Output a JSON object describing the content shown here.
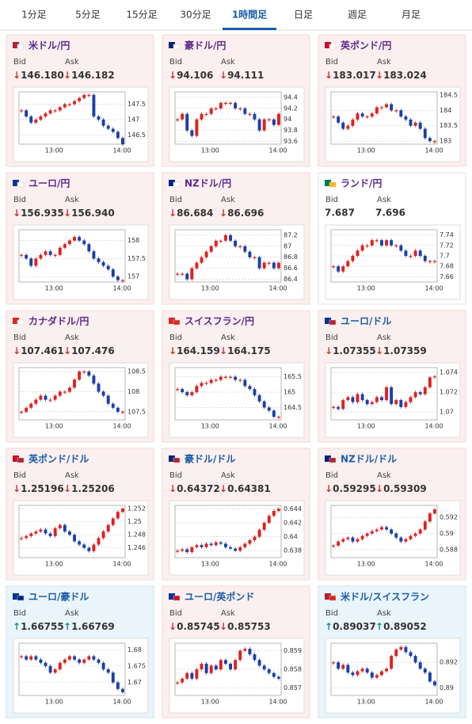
{
  "tabs": {
    "items": [
      "1分足",
      "5分足",
      "15分足",
      "30分足",
      "1時間足",
      "日足",
      "週足",
      "月足"
    ],
    "active": 4
  },
  "labels": {
    "bid": "Bid",
    "ask": "Ask"
  },
  "time_labels": [
    "13:00",
    "14:00"
  ],
  "pairs": [
    {
      "name": "米ドル/円",
      "name_color": "#5b2a8c",
      "trend": "down",
      "flags": [
        "#b22234",
        "#ffffff"
      ],
      "bid": "↓146.180",
      "ask": "↓146.182",
      "chart_data": {
        "type": "candlestick",
        "ylim": [
          146.2,
          147.9
        ],
        "yticks": [
          146.5,
          147,
          147.5
        ],
        "values": [
          147.3,
          147.1,
          146.9,
          147.0,
          147.1,
          147.2,
          147.3,
          147.3,
          147.4,
          147.5,
          147.5,
          147.6,
          147.7,
          147.8,
          147.8,
          147.1,
          147.0,
          146.8,
          146.7,
          146.6,
          146.4,
          146.2
        ]
      }
    },
    {
      "name": "豪ドル/円",
      "name_color": "#5b2a8c",
      "trend": "down",
      "flags": [
        "#00247d",
        "#ffffff"
      ],
      "bid": "↓94.106",
      "ask": "↓94.111",
      "chart_data": {
        "type": "candlestick",
        "ylim": [
          93.55,
          94.5
        ],
        "yticks": [
          93.6,
          93.8,
          94,
          94.2,
          94.4
        ],
        "values": [
          94.0,
          94.1,
          93.8,
          93.7,
          94.0,
          94.1,
          94.1,
          94.2,
          94.2,
          94.3,
          94.3,
          94.3,
          94.2,
          94.2,
          94.1,
          94.1,
          94.0,
          93.8,
          94.0,
          94.0,
          93.9,
          94.1
        ]
      }
    },
    {
      "name": "英ポンド/円",
      "name_color": "#5b2a8c",
      "trend": "down",
      "flags": [
        "#c8102e",
        "#ffffff"
      ],
      "bid": "↓183.017",
      "ask": "↓183.024",
      "chart_data": {
        "type": "candlestick",
        "ylim": [
          182.9,
          184.6
        ],
        "yticks": [
          183,
          183.5,
          184,
          184.5
        ],
        "values": [
          183.8,
          183.6,
          183.4,
          183.5,
          183.7,
          183.9,
          183.8,
          183.8,
          183.9,
          184.1,
          184.1,
          184.2,
          184.0,
          184.0,
          183.8,
          183.7,
          183.5,
          183.6,
          183.4,
          183.1,
          183.0,
          183.0
        ]
      }
    },
    {
      "name": "ユーロ/円",
      "name_color": "#5b2a8c",
      "trend": "down",
      "flags": [
        "#003399",
        "#ffffff"
      ],
      "bid": "↓156.935",
      "ask": "↓156.940",
      "chart_data": {
        "type": "candlestick",
        "ylim": [
          156.85,
          158.3
        ],
        "yticks": [
          157,
          157.5,
          158
        ],
        "values": [
          157.6,
          157.5,
          157.3,
          157.5,
          157.6,
          157.7,
          157.6,
          157.6,
          157.8,
          157.9,
          158.0,
          158.1,
          158.0,
          157.9,
          157.7,
          157.5,
          157.4,
          157.3,
          157.2,
          157.0,
          156.9,
          156.9
        ]
      }
    },
    {
      "name": "NZドル/円",
      "name_color": "#5b2a8c",
      "trend": "down",
      "flags": [
        "#00247d",
        "#ffffff"
      ],
      "bid": "↓86.684",
      "ask": "↓86.696",
      "chart_data": {
        "type": "candlestick",
        "ylim": [
          86.35,
          87.3
        ],
        "yticks": [
          86.4,
          86.6,
          86.8,
          87,
          87.2
        ],
        "values": [
          86.5,
          86.5,
          86.4,
          86.6,
          86.7,
          86.8,
          86.9,
          87.0,
          87.1,
          87.1,
          87.2,
          87.1,
          87.0,
          87.0,
          86.9,
          86.8,
          86.8,
          86.6,
          86.7,
          86.7,
          86.6,
          86.7
        ]
      }
    },
    {
      "name": "ランド/円",
      "name_color": "#5b2a8c",
      "trend": "none",
      "flags": [
        "#007a4d",
        "#ffb612"
      ],
      "bid": "7.687",
      "ask": "7.696",
      "chart_data": {
        "type": "candlestick",
        "ylim": [
          7.65,
          7.75
        ],
        "yticks": [
          7.66,
          7.68,
          7.7,
          7.72,
          7.74
        ],
        "values": [
          7.68,
          7.67,
          7.68,
          7.69,
          7.7,
          7.71,
          7.72,
          7.72,
          7.73,
          7.73,
          7.72,
          7.73,
          7.72,
          7.72,
          7.71,
          7.7,
          7.7,
          7.71,
          7.7,
          7.69,
          7.69,
          7.69
        ]
      }
    },
    {
      "name": "カナダドル/円",
      "name_color": "#5b2a8c",
      "trend": "down",
      "flags": [
        "#d52b1e",
        "#ffffff"
      ],
      "bid": "↓107.461",
      "ask": "↓107.476",
      "chart_data": {
        "type": "candlestick",
        "ylim": [
          107.3,
          108.6
        ],
        "yticks": [
          107.5,
          108,
          108.5
        ],
        "values": [
          107.5,
          107.6,
          107.7,
          107.8,
          107.9,
          107.8,
          107.8,
          107.9,
          108.0,
          108.0,
          108.1,
          108.3,
          108.5,
          108.5,
          108.4,
          108.2,
          108.0,
          107.9,
          107.7,
          107.6,
          107.5,
          107.5
        ]
      }
    },
    {
      "name": "スイスフラン/円",
      "name_color": "#5b2a8c",
      "trend": "down",
      "flags": [
        "#d52b1e",
        "#d52b1e"
      ],
      "bid": "↓164.159",
      "ask": "↓164.175",
      "chart_data": {
        "type": "candlestick",
        "ylim": [
          164.1,
          165.8
        ],
        "yticks": [
          164.5,
          165,
          165.5
        ],
        "values": [
          165.1,
          165.0,
          164.9,
          165.0,
          165.2,
          165.3,
          165.3,
          165.4,
          165.4,
          165.5,
          165.5,
          165.5,
          165.4,
          165.4,
          165.2,
          165.1,
          164.9,
          164.7,
          164.5,
          164.4,
          164.2,
          164.2
        ]
      }
    },
    {
      "name": "ユーロ/ドル",
      "name_color": "#1a5ea8",
      "trend": "down",
      "flags": [
        "#003399",
        "#b22234"
      ],
      "bid": "↓1.07355",
      "ask": "↓1.07359",
      "chart_data": {
        "type": "candlestick",
        "ylim": [
          1.0692,
          1.0745
        ],
        "yticks": [
          1.07,
          1.072,
          1.074
        ],
        "values": [
          1.0705,
          1.0703,
          1.0712,
          1.0715,
          1.071,
          1.0718,
          1.0712,
          1.0708,
          1.071,
          1.0715,
          1.0712,
          1.0725,
          1.0708,
          1.0712,
          1.0705,
          1.071,
          1.0715,
          1.072,
          1.0718,
          1.0725,
          1.0735,
          1.0736
        ]
      }
    },
    {
      "name": "英ポンド/ドル",
      "name_color": "#1a5ea8",
      "trend": "down",
      "flags": [
        "#c8102e",
        "#b22234"
      ],
      "bid": "↓1.25196",
      "ask": "↓1.25206",
      "chart_data": {
        "type": "candlestick",
        "ylim": [
          1.2445,
          1.2525
        ],
        "yticks": [
          1.246,
          1.248,
          1.25,
          1.252
        ],
        "values": [
          1.2475,
          1.2478,
          1.2482,
          1.2485,
          1.2488,
          1.2482,
          1.2478,
          1.249,
          1.2495,
          1.2485,
          1.248,
          1.247,
          1.2465,
          1.246,
          1.2455,
          1.2465,
          1.2475,
          1.2485,
          1.2495,
          1.2505,
          1.2515,
          1.252
        ]
      }
    },
    {
      "name": "豪ドル/ドル",
      "name_color": "#1a5ea8",
      "trend": "down",
      "flags": [
        "#00247d",
        "#b22234"
      ],
      "bid": "↓0.64372",
      "ask": "↓0.64381",
      "chart_data": {
        "type": "candlestick",
        "ylim": [
          0.637,
          0.6445
        ],
        "yticks": [
          0.638,
          0.64,
          0.642,
          0.644
        ],
        "values": [
          0.638,
          0.6382,
          0.6378,
          0.6385,
          0.6388,
          0.6385,
          0.639,
          0.6388,
          0.6392,
          0.639,
          0.6385,
          0.6383,
          0.638,
          0.6385,
          0.639,
          0.6395,
          0.64,
          0.641,
          0.642,
          0.643,
          0.6437,
          0.644
        ]
      }
    },
    {
      "name": "NZドル/ドル",
      "name_color": "#1a5ea8",
      "trend": "down",
      "flags": [
        "#00247d",
        "#b22234"
      ],
      "bid": "↓0.59295",
      "ask": "↓0.59309",
      "chart_data": {
        "type": "candlestick",
        "ylim": [
          0.587,
          0.5935
        ],
        "yticks": [
          0.588,
          0.59,
          0.592
        ],
        "values": [
          0.5885,
          0.589,
          0.5893,
          0.5895,
          0.589,
          0.5893,
          0.5897,
          0.59,
          0.5903,
          0.5905,
          0.5908,
          0.5905,
          0.59,
          0.5895,
          0.589,
          0.5893,
          0.5897,
          0.59,
          0.5905,
          0.5915,
          0.5925,
          0.593
        ]
      }
    },
    {
      "name": "ユーロ/豪ドル",
      "name_color": "#1a5ea8",
      "trend": "up",
      "flags": [
        "#003399",
        "#00247d"
      ],
      "bid": "↑1.66755",
      "ask": "↑1.66769",
      "chart_data": {
        "type": "candlestick",
        "ylim": [
          1.666,
          1.682
        ],
        "yticks": [
          1.67,
          1.675,
          1.68
        ],
        "values": [
          1.678,
          1.677,
          1.678,
          1.677,
          1.676,
          1.675,
          1.673,
          1.674,
          1.676,
          1.677,
          1.678,
          1.677,
          1.676,
          1.677,
          1.678,
          1.677,
          1.676,
          1.674,
          1.673,
          1.67,
          1.668,
          1.667
        ]
      }
    },
    {
      "name": "ユーロ/英ポンド",
      "name_color": "#1a5ea8",
      "trend": "down",
      "flags": [
        "#003399",
        "#c8102e"
      ],
      "bid": "↓0.85745",
      "ask": "↓0.85753",
      "chart_data": {
        "type": "candlestick",
        "ylim": [
          0.8566,
          0.8594
        ],
        "yticks": [
          0.857,
          0.858,
          0.859
        ],
        "values": [
          0.8573,
          0.8575,
          0.8578,
          0.8575,
          0.858,
          0.8583,
          0.8578,
          0.8582,
          0.858,
          0.8585,
          0.8583,
          0.858,
          0.8585,
          0.859,
          0.8591,
          0.8588,
          0.8585,
          0.8582,
          0.858,
          0.8578,
          0.8576,
          0.8575
        ]
      }
    },
    {
      "name": "米ドル/スイスフラン",
      "name_color": "#1a5ea8",
      "trend": "up",
      "flags": [
        "#b22234",
        "#d52b1e"
      ],
      "bid": "↑0.89037",
      "ask": "↑0.89052",
      "chart_data": {
        "type": "candlestick",
        "ylim": [
          0.8894,
          0.8935
        ],
        "yticks": [
          0.89,
          0.892
        ],
        "values": [
          0.892,
          0.8915,
          0.8918,
          0.8912,
          0.891,
          0.8913,
          0.8915,
          0.8912,
          0.8908,
          0.891,
          0.8913,
          0.8915,
          0.8925,
          0.893,
          0.8932,
          0.8928,
          0.8925,
          0.892,
          0.8915,
          0.8912,
          0.8905,
          0.8902
        ]
      }
    }
  ]
}
